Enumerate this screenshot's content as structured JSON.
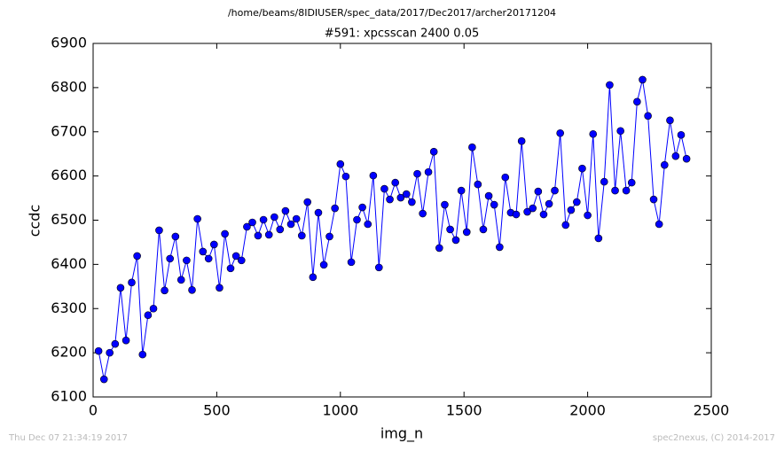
{
  "chart_data": {
    "type": "line",
    "suptitle": "/home/beams/8IDIUSER/spec_data/2017/Dec2017/archer20171204",
    "title": "#591: xpcsscan 2400 0.05",
    "xlabel": "img_n",
    "ylabel": "ccdc",
    "footer_left": "Thu Dec 07 21:34:19 2017",
    "footer_right": "spec2nexus, (C) 2014-2017",
    "x": [
      22,
      44,
      67,
      89,
      111,
      133,
      156,
      178,
      200,
      222,
      244,
      267,
      289,
      311,
      333,
      356,
      378,
      400,
      422,
      444,
      467,
      489,
      511,
      533,
      556,
      578,
      600,
      622,
      644,
      667,
      689,
      711,
      733,
      756,
      778,
      800,
      822,
      844,
      867,
      889,
      911,
      933,
      956,
      978,
      1000,
      1022,
      1044,
      1067,
      1089,
      1111,
      1133,
      1156,
      1178,
      1200,
      1222,
      1244,
      1267,
      1289,
      1311,
      1333,
      1356,
      1378,
      1400,
      1422,
      1444,
      1467,
      1489,
      1511,
      1533,
      1556,
      1578,
      1600,
      1622,
      1644,
      1667,
      1689,
      1711,
      1733,
      1756,
      1778,
      1800,
      1822,
      1844,
      1867,
      1889,
      1911,
      1933,
      1956,
      1978,
      2000,
      2022,
      2044,
      2067,
      2089,
      2111,
      2133,
      2156,
      2178,
      2200,
      2222,
      2244,
      2267,
      2289,
      2311,
      2333,
      2356,
      2378,
      2400
    ],
    "series": [
      {
        "color": "#0000ff",
        "marker_edge": "#000000",
        "values": [
          6204,
          6140,
          6200,
          6220,
          6347,
          6228,
          6359,
          6419,
          6196,
          6285,
          6300,
          6477,
          6341,
          6413,
          6463,
          6365,
          6409,
          6342,
          6503,
          6429,
          6413,
          6445,
          6347,
          6469,
          6391,
          6419,
          6409,
          6485,
          6495,
          6465,
          6501,
          6467,
          6507,
          6479,
          6521,
          6491,
          6503,
          6465,
          6541,
          6371,
          6517,
          6399,
          6463,
          6527,
          6627,
          6599,
          6405,
          6501,
          6529,
          6491,
          6601,
          6393,
          6571,
          6547,
          6585,
          6551,
          6559,
          6541,
          6605,
          6515,
          6609,
          6655,
          6437,
          6535,
          6479,
          6455,
          6567,
          6473,
          6665,
          6581,
          6479,
          6555,
          6535,
          6439,
          6597,
          6517,
          6513,
          6679,
          6519,
          6527,
          6565,
          6513,
          6537,
          6567,
          6697,
          6489,
          6523,
          6541,
          6617,
          6511,
          6695,
          6459,
          6587,
          6806,
          6567,
          6702,
          6567,
          6585,
          6768,
          6818,
          6736,
          6547,
          6491,
          6625,
          6726,
          6645,
          6693,
          6639
        ]
      }
    ],
    "xlim": [
      0,
      2500
    ],
    "xticks": [
      0,
      500,
      1000,
      1500,
      2000,
      2500
    ],
    "ylim": [
      6100,
      6900
    ],
    "yticks": [
      6100,
      6200,
      6300,
      6400,
      6500,
      6600,
      6700,
      6800,
      6900
    ],
    "grid": false
  }
}
